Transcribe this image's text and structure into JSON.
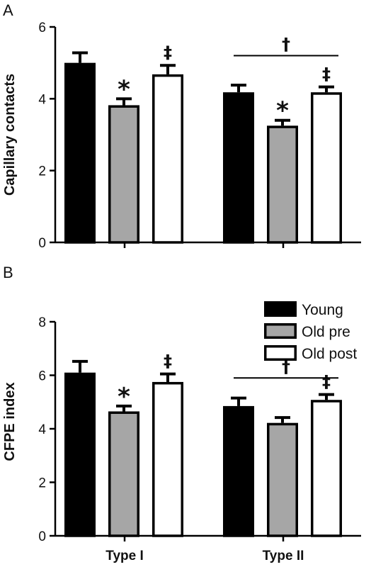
{
  "chart_data": [
    {
      "type": "bar",
      "panel": "A",
      "ylabel": "Capillary contacts",
      "ylim": [
        0,
        6
      ],
      "yticks": [
        0,
        2,
        4,
        6
      ],
      "categories": [
        "Type I",
        "Type II"
      ],
      "series": [
        {
          "name": "Young",
          "values": [
            5.0,
            4.18
          ],
          "errors": [
            0.28,
            0.2
          ],
          "color": "#000000"
        },
        {
          "name": "Old pre",
          "values": [
            3.82,
            3.25
          ],
          "errors": [
            0.18,
            0.15
          ],
          "color": "#a6a6a6"
        },
        {
          "name": "Old post",
          "values": [
            4.68,
            4.18
          ],
          "errors": [
            0.25,
            0.15
          ],
          "color": "#ffffff"
        }
      ],
      "markers": [
        {
          "category": 0,
          "series": 1,
          "symbol": "*"
        },
        {
          "category": 0,
          "series": 2,
          "symbol": "‡"
        },
        {
          "category": 1,
          "series": 1,
          "symbol": "*"
        },
        {
          "category": 1,
          "series": 2,
          "symbol": "‡"
        }
      ],
      "bracket": {
        "category": 1,
        "symbol": "†",
        "y": 5.2
      }
    },
    {
      "type": "bar",
      "panel": "B",
      "ylabel": "CFPE index",
      "ylim": [
        0,
        8
      ],
      "yticks": [
        0,
        2,
        4,
        6,
        8
      ],
      "categories": [
        "Type I",
        "Type II"
      ],
      "series": [
        {
          "name": "Young",
          "values": [
            6.1,
            4.85
          ],
          "errors": [
            0.42,
            0.3
          ],
          "color": "#000000"
        },
        {
          "name": "Old pre",
          "values": [
            4.65,
            4.22
          ],
          "errors": [
            0.2,
            0.2
          ],
          "color": "#a6a6a6"
        },
        {
          "name": "Old post",
          "values": [
            5.75,
            5.08
          ],
          "errors": [
            0.3,
            0.2
          ],
          "color": "#ffffff"
        }
      ],
      "markers": [
        {
          "category": 0,
          "series": 1,
          "symbol": "*"
        },
        {
          "category": 0,
          "series": 2,
          "symbol": "‡"
        },
        {
          "category": 1,
          "series": 2,
          "symbol": "‡"
        }
      ],
      "bracket": {
        "category": 1,
        "symbol": "†",
        "y": 5.9
      },
      "legend": {
        "position": "top-right",
        "entries": [
          "Young",
          "Old pre",
          "Old post"
        ]
      }
    }
  ]
}
